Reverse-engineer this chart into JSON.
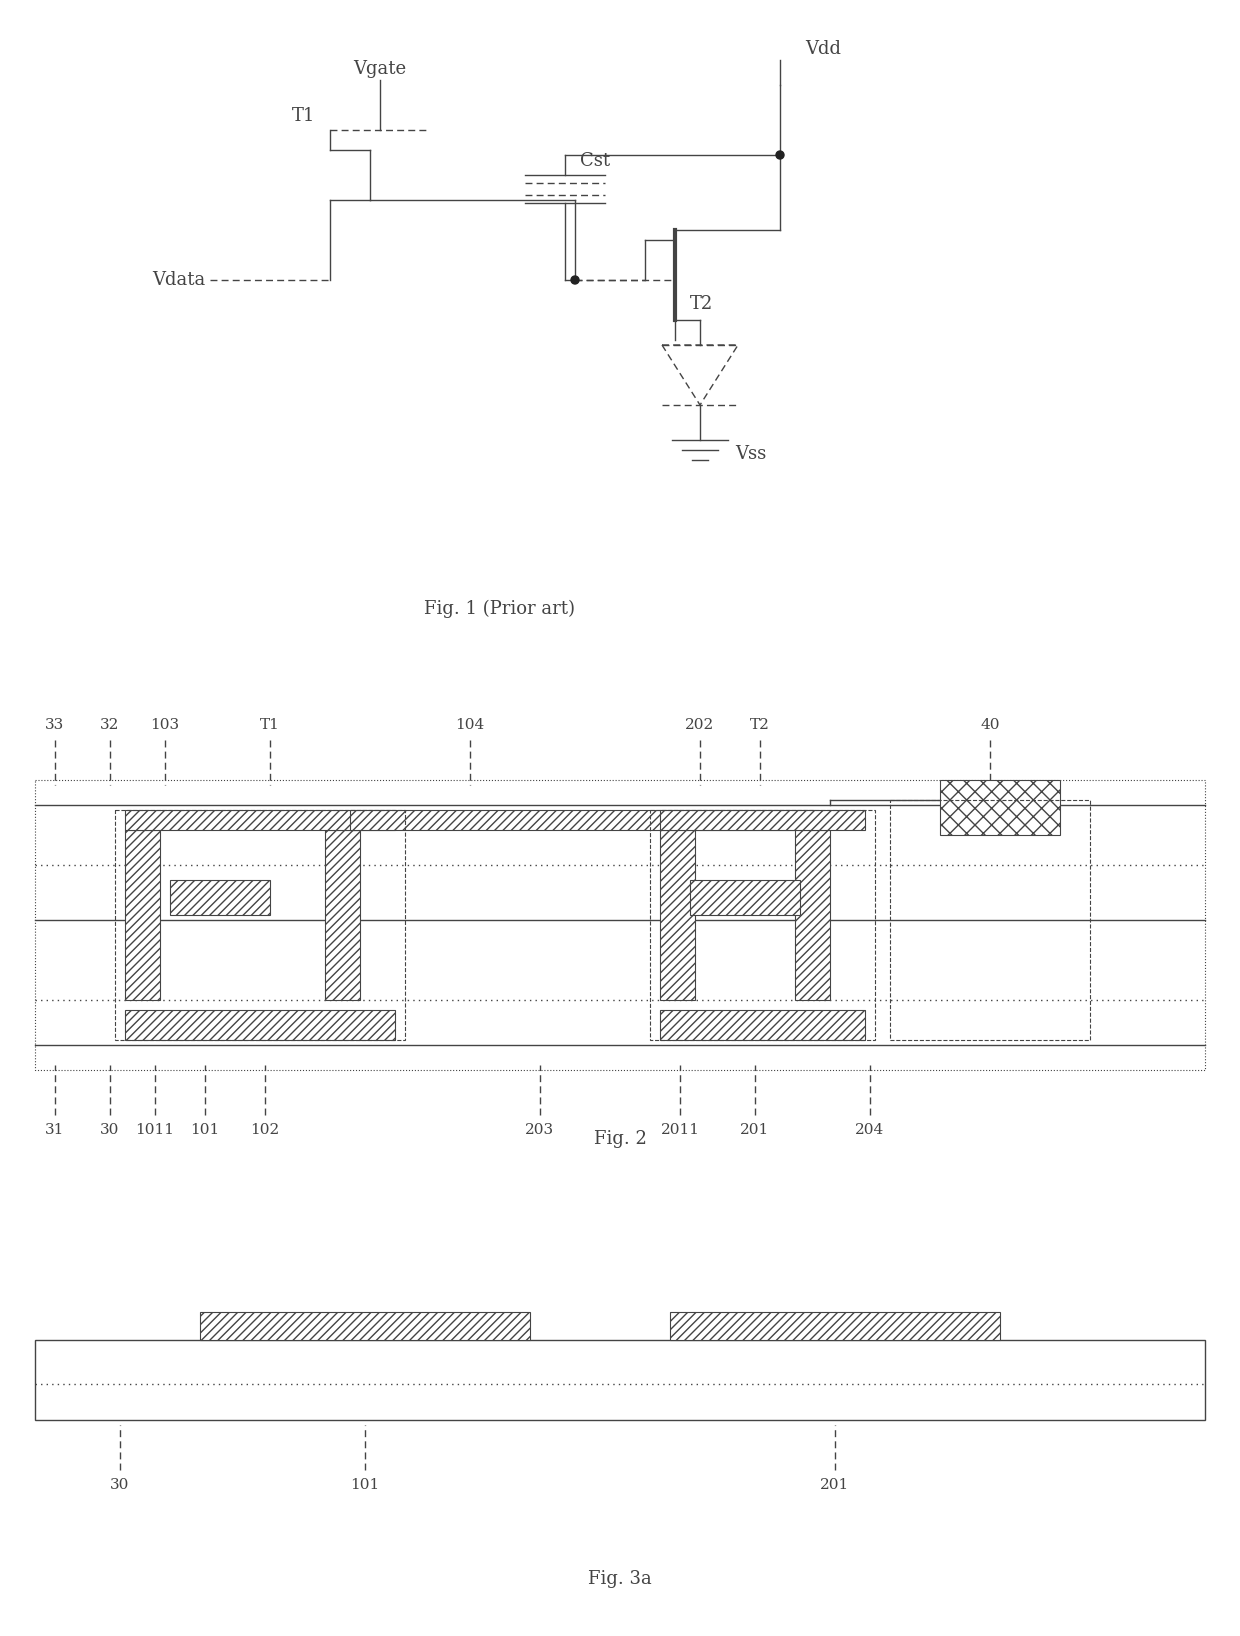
{
  "fig_width": 12.4,
  "fig_height": 16.36,
  "bg_color": "#ffffff",
  "line_color": "#444444",
  "line_width": 1.0,
  "fig1_caption": "Fig. 1 (Prior art)",
  "fig2_caption": "Fig. 2",
  "fig3a_caption": "Fig. 3a",
  "font_size_label": 13,
  "font_size_caption": 13,
  "font_size_small": 11
}
